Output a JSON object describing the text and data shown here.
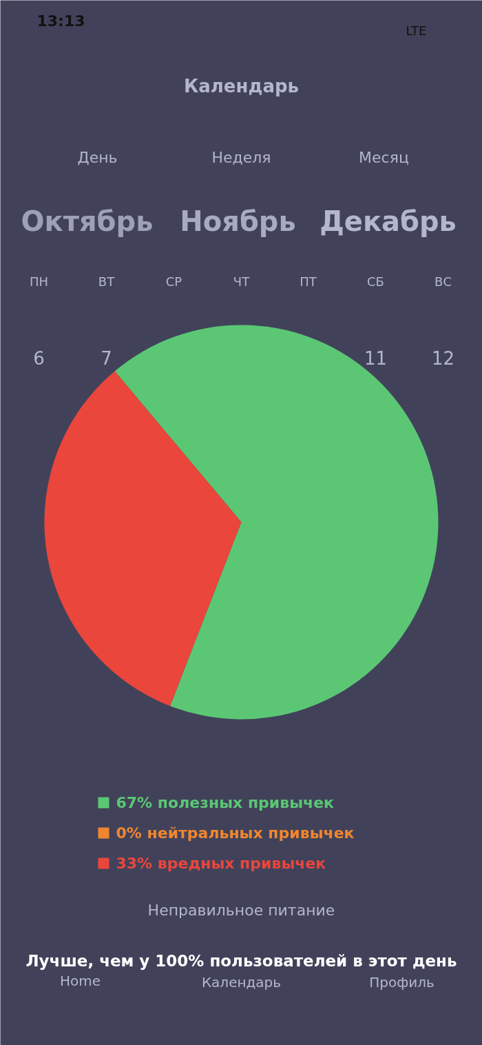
{
  "chart_data": {
    "type": "pie",
    "categories": [
      "67% полезных привычек",
      "0% нейтральных привычек",
      "33% вредных привычек"
    ],
    "values": [
      67,
      0,
      33
    ],
    "colors": [
      "#5bc774",
      "#f0862f",
      "#ea463c"
    ],
    "legend": "bottom",
    "annotations": [
      "13:13",
      "LTE",
      "Календарь",
      "День",
      "Неделя",
      "Месяц",
      "Октябрь",
      "Ноябрь",
      "Декабрь",
      "ПН",
      "ВТ",
      "СР",
      "ЧТ",
      "ПТ",
      "СБ",
      "ВС",
      "6",
      "7",
      "11",
      "12",
      "Неправильное питание",
      "Home",
      "Календарь",
      "Профиль",
      "Лучше, чем у 100% пользователей в этот день"
    ]
  }
}
